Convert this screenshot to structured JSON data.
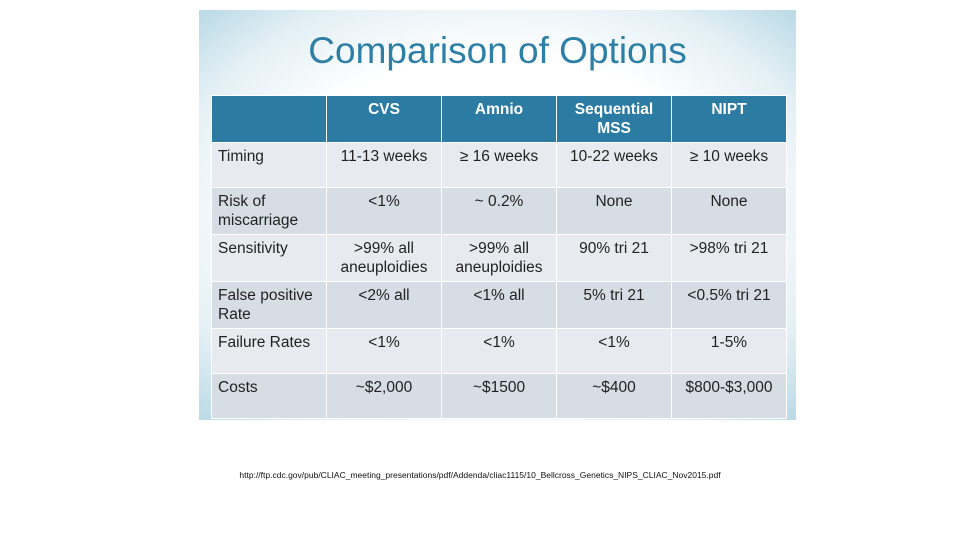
{
  "title": "Comparison of Options",
  "table": {
    "header": [
      "",
      "CVS",
      "Amnio",
      "Sequential MSS",
      "NIPT"
    ],
    "rows": [
      [
        "Timing",
        "11-13 weeks",
        "≥ 16 weeks",
        "10-22 weeks",
        "≥ 10 weeks"
      ],
      [
        "Risk of miscarriage",
        "<1%",
        "~ 0.2%",
        "None",
        "None"
      ],
      [
        "Sensitivity",
        ">99% all aneuploidies",
        ">99% all aneuploidies",
        "90% tri 21",
        ">98% tri 21"
      ],
      [
        "False positive Rate",
        "<2% all",
        "<1% all",
        "5% tri 21",
        "<0.5% tri 21"
      ],
      [
        "Failure Rates",
        "<1%",
        "<1%",
        "<1%",
        "1-5%"
      ],
      [
        "Costs",
        "~$2,000",
        "~$1500",
        "~$400",
        "$800-$3,000"
      ]
    ]
  },
  "source": "http://ftp.cdc.gov/pub/CLIAC_meeting_presentations/pdf/Addenda/cliac1115/10_Bellcross_Genetics_NIPS_CLIAC_Nov2015.pdf"
}
